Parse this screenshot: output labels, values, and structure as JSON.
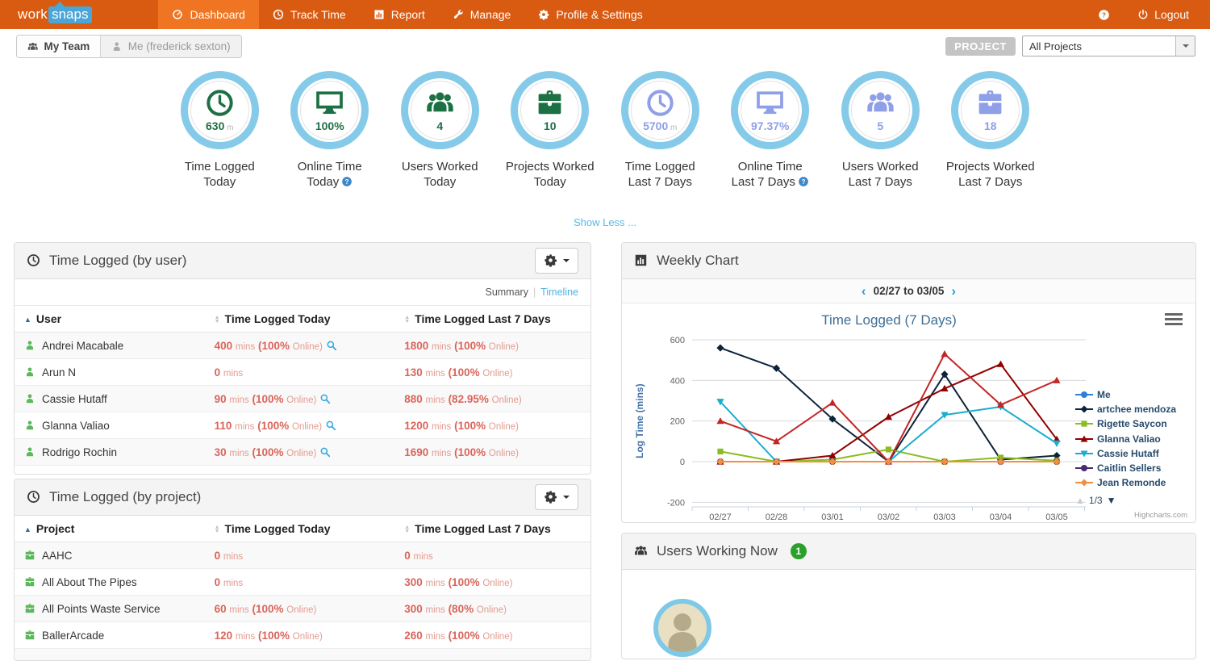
{
  "colors": {
    "navbar_bg": "#d95b12",
    "navbar_active_bg": "#ef7522",
    "logo_badge_bg": "#4aa5d9",
    "stat_green": "#1d7044",
    "stat_blue": "#8f9fe8",
    "ring_blue": "#85cbe9",
    "value_red": "#d9655a",
    "link_blue": "#4db3e6",
    "badge_green": "#2ba12b"
  },
  "navbar": {
    "logo_work": "work",
    "logo_snaps": "snaps",
    "items": [
      {
        "label": "Dashboard",
        "icon": "gauge-icon",
        "active": true
      },
      {
        "label": "Track Time",
        "icon": "clock-icon",
        "active": false
      },
      {
        "label": "Report",
        "icon": "chart-icon",
        "active": false
      },
      {
        "label": "Manage",
        "icon": "wrench-icon",
        "active": false
      },
      {
        "label": "Profile & Settings",
        "icon": "gear-icon",
        "active": false
      }
    ],
    "logout_label": "Logout"
  },
  "subheader": {
    "tab_team": "My Team",
    "tab_me": "Me (frederick sexton)",
    "project_label": "PROJECT",
    "project_value": "All Projects"
  },
  "stats": [
    {
      "icon": "clock-icon",
      "value": "630",
      "suffix": "m",
      "line1": "Time Logged",
      "line2": "Today",
      "theme": "green",
      "help": false
    },
    {
      "icon": "monitor-icon",
      "value": "100%",
      "suffix": "",
      "line1": "Online Time",
      "line2": "Today",
      "theme": "green",
      "help": true
    },
    {
      "icon": "users-icon",
      "value": "4",
      "suffix": "",
      "line1": "Users Worked",
      "line2": "Today",
      "theme": "green",
      "help": false
    },
    {
      "icon": "briefcase-icon",
      "value": "10",
      "suffix": "",
      "line1": "Projects Worked",
      "line2": "Today",
      "theme": "green",
      "help": false
    },
    {
      "icon": "clock-icon",
      "value": "5700",
      "suffix": "m",
      "line1": "Time Logged",
      "line2": "Last 7 Days",
      "theme": "blue",
      "help": false
    },
    {
      "icon": "monitor-icon",
      "value": "97.37%",
      "suffix": "",
      "line1": "Online Time",
      "line2": "Last 7 Days",
      "theme": "blue",
      "help": true
    },
    {
      "icon": "users-icon",
      "value": "5",
      "suffix": "",
      "line1": "Users Worked",
      "line2": "Last 7 Days",
      "theme": "blue",
      "help": false
    },
    {
      "icon": "briefcase-icon",
      "value": "18",
      "suffix": "",
      "line1": "Projects Worked",
      "line2": "Last 7 Days",
      "theme": "blue",
      "help": false
    }
  ],
  "show_less_label": "Show Less ...",
  "user_panel": {
    "title": "Time Logged (by user)",
    "view_summary": "Summary",
    "view_divider": "|",
    "view_timeline": "Timeline",
    "columns": [
      "User",
      "Time Logged Today",
      "Time Logged Last 7 Days"
    ],
    "unit_word": "mins",
    "online_word": "Online)",
    "rows": [
      {
        "name": "Andrei Macabale",
        "today_val": "400",
        "today_pct": "(100%",
        "today_zoom": true,
        "week_val": "1800",
        "week_pct": "(100%"
      },
      {
        "name": "Arun N",
        "today_val": "0",
        "today_pct": null,
        "today_zoom": false,
        "week_val": "130",
        "week_pct": "(100%"
      },
      {
        "name": "Cassie Hutaff",
        "today_val": "90",
        "today_pct": "(100%",
        "today_zoom": true,
        "week_val": "880",
        "week_pct": "(82.95%"
      },
      {
        "name": "Glanna Valiao",
        "today_val": "110",
        "today_pct": "(100%",
        "today_zoom": true,
        "week_val": "1200",
        "week_pct": "(100%"
      },
      {
        "name": "Rodrigo Rochin",
        "today_val": "30",
        "today_pct": "(100%",
        "today_zoom": true,
        "week_val": "1690",
        "week_pct": "(100%"
      }
    ]
  },
  "project_panel": {
    "title": "Time Logged (by project)",
    "columns": [
      "Project",
      "Time Logged Today",
      "Time Logged Last 7 Days"
    ],
    "rows": [
      {
        "name": "AAHC",
        "today_val": "0",
        "today_pct": null,
        "today_zoom": false,
        "week_val": "0",
        "week_pct": null
      },
      {
        "name": "All About The Pipes",
        "today_val": "0",
        "today_pct": null,
        "today_zoom": false,
        "week_val": "300",
        "week_pct": "(100%"
      },
      {
        "name": "All Points Waste Service",
        "today_val": "60",
        "today_pct": "(100%",
        "today_zoom": false,
        "week_val": "300",
        "week_pct": "(80%"
      },
      {
        "name": "BallerArcade",
        "today_val": "120",
        "today_pct": "(100%",
        "today_zoom": false,
        "week_val": "260",
        "week_pct": "(100%"
      }
    ]
  },
  "weekly_panel": {
    "title": "Weekly Chart",
    "date_range": "02/27 to 03/05",
    "prev_glyph": "‹",
    "next_glyph": "›"
  },
  "working_panel": {
    "title": "Users Working Now",
    "count": "1"
  },
  "chart_data": {
    "type": "line",
    "title": "Time Logged (7 Days)",
    "xlabel": "",
    "ylabel": "Log Time (mins)",
    "ylim": [
      -200,
      600
    ],
    "yticks": [
      600,
      400,
      200,
      0,
      -200
    ],
    "categories": [
      "02/27",
      "02/28",
      "03/01",
      "03/02",
      "03/03",
      "03/04",
      "03/05"
    ],
    "grid": true,
    "legend_position": "right",
    "legend_page": "1/3",
    "credit": "Highcharts.com",
    "series": [
      {
        "name": "Me",
        "color": "#2f7ed8",
        "symbol": "circle",
        "in_legend": true,
        "values": [
          0,
          0,
          0,
          0,
          0,
          0,
          0
        ]
      },
      {
        "name": "artchee mendoza",
        "color": "#0d233a",
        "symbol": "diamond",
        "in_legend": true,
        "values": [
          560,
          460,
          210,
          0,
          430,
          10,
          30
        ]
      },
      {
        "name": "Rigette Saycon",
        "color": "#8bbc21",
        "symbol": "square",
        "in_legend": true,
        "values": [
          50,
          0,
          10,
          60,
          0,
          20,
          5
        ]
      },
      {
        "name": "Glanna Valiao",
        "color": "#910000",
        "symbol": "triangle",
        "in_legend": true,
        "values": [
          0,
          0,
          30,
          220,
          360,
          480,
          110
        ]
      },
      {
        "name": "Cassie Hutaff",
        "color": "#1aadce",
        "symbol": "triangle-down",
        "in_legend": true,
        "values": [
          295,
          0,
          0,
          0,
          230,
          270,
          90
        ]
      },
      {
        "name": "",
        "color": "#c42525",
        "symbol": "triangle",
        "in_legend": false,
        "values": [
          200,
          100,
          290,
          0,
          530,
          280,
          400
        ]
      },
      {
        "name": "Caitlin Sellers",
        "color": "#492970",
        "symbol": "circle",
        "in_legend": true,
        "values": [
          0,
          0,
          0,
          0,
          0,
          0,
          0
        ]
      },
      {
        "name": "Jean Remonde",
        "color": "#f28f43",
        "symbol": "diamond",
        "in_legend": true,
        "values": [
          0,
          0,
          0,
          0,
          0,
          0,
          0
        ]
      }
    ]
  }
}
